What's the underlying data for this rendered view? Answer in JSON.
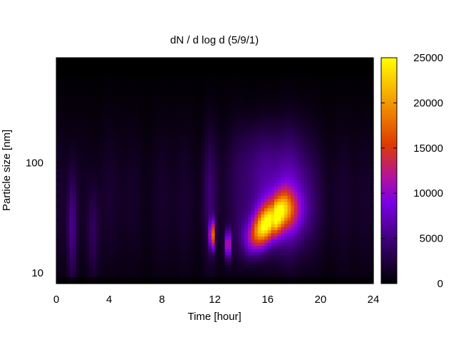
{
  "chart_data": {
    "type": "heatmap",
    "title": "dN / d log d (5/9/1)",
    "xlabel": "Time [hour]",
    "ylabel": "Particle size [nm]",
    "xlim": [
      0,
      24
    ],
    "ylim": [
      8,
      900
    ],
    "y_scale": "log",
    "x_ticks": [
      "0",
      "4",
      "8",
      "12",
      "16",
      "20",
      "24"
    ],
    "y_ticks": [
      "10",
      "100"
    ],
    "colorbar": {
      "range": [
        0,
        25000
      ],
      "ticks": [
        "0",
        "5000",
        "10000",
        "15000",
        "20000",
        "25000"
      ],
      "colormap": [
        "#000000",
        "#3a0070",
        "#7a00e6",
        "#b4129c",
        "#dd3d00",
        "#f5a300",
        "#ffff00"
      ]
    },
    "background_level": 2000,
    "features": [
      {
        "name": "uniform-upper-layer",
        "time": [
          0,
          24
        ],
        "size": [
          600,
          900
        ],
        "value": 0
      },
      {
        "name": "burst-1",
        "time": 11.8,
        "size": 22,
        "value": 17000
      },
      {
        "name": "burst-2",
        "time": 13.0,
        "size": 18,
        "value": 13000
      },
      {
        "name": "growth-event",
        "time": [
          14.5,
          17.5
        ],
        "size": [
          20,
          45
        ],
        "value": 19000
      },
      {
        "name": "band-early",
        "time": 1.2,
        "size": [
          10,
          70
        ],
        "value": 4500
      },
      {
        "name": "band-mid",
        "time": 11.6,
        "size": [
          10,
          150
        ],
        "value": 6000
      }
    ]
  }
}
